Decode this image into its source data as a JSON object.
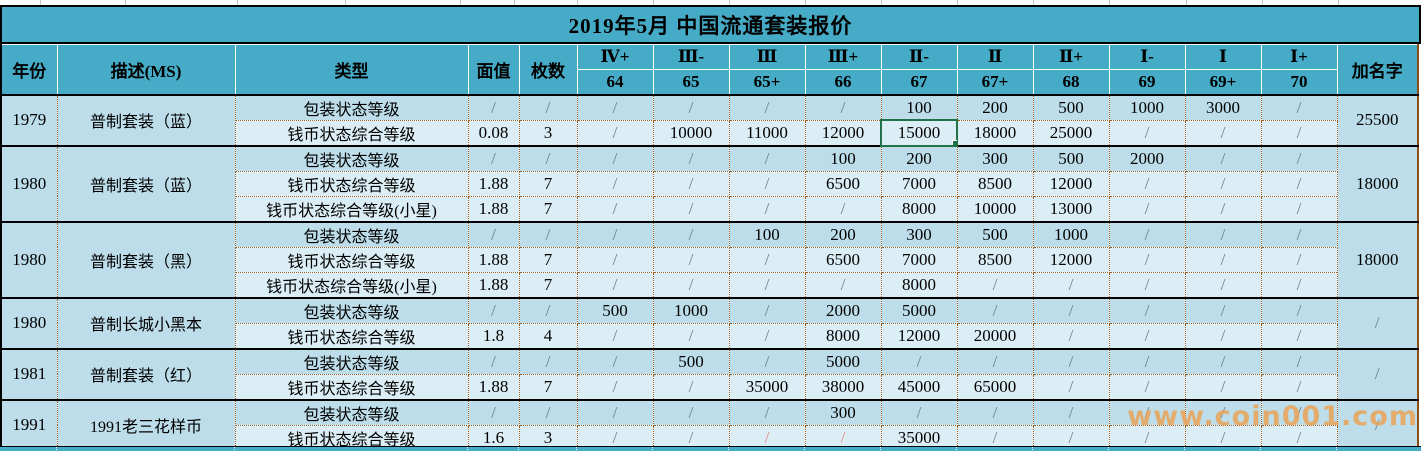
{
  "title": "2019年5月  中国流通套装报价",
  "watermark": "www.coin001.com",
  "colors": {
    "header_teal": "#46abc6",
    "group_band": "#bcdde9",
    "data_band": "#dceef5",
    "selection_green": "#1f7346",
    "dotted_border_brown": "#9b5d1e",
    "slash_gray": "#708090",
    "slash_red": "#e98b8b",
    "watermark_orange": "#ee9e4a"
  },
  "header": {
    "year": "年份",
    "desc": "描述(MS)",
    "type": "类型",
    "face_value": "面值",
    "count": "枚数",
    "add_name": "加名字",
    "grades": [
      {
        "label": "Ⅳ+",
        "num": "64"
      },
      {
        "label": "Ⅲ-",
        "num": "65"
      },
      {
        "label": "Ⅲ",
        "num": "65+"
      },
      {
        "label": "Ⅲ+",
        "num": "66"
      },
      {
        "label": "Ⅱ-",
        "num": "67"
      },
      {
        "label": "Ⅱ",
        "num": "67+"
      },
      {
        "label": "Ⅱ+",
        "num": "68"
      },
      {
        "label": "Ⅰ-",
        "num": "69"
      },
      {
        "label": "Ⅰ",
        "num": "69+"
      },
      {
        "label": "Ⅰ+",
        "num": "70"
      }
    ]
  },
  "groups": [
    {
      "year": "1979",
      "desc": "普制套装（蓝）",
      "add_name": "25500",
      "rows": [
        {
          "type": "包装状态等级",
          "face": "/",
          "count": "/",
          "values": [
            "/",
            "/",
            "/",
            "/",
            "100",
            "200",
            "500",
            "1000",
            "3000",
            "/"
          ]
        },
        {
          "type": "钱币状态综合等级",
          "face": "0.08",
          "count": "3",
          "values": [
            "/",
            "10000",
            "11000",
            "12000",
            "15000",
            "18000",
            "25000",
            "/",
            "/",
            "/"
          ],
          "selected_index": 4
        }
      ]
    },
    {
      "year": "1980",
      "desc": "普制套装（蓝）",
      "add_name": "18000",
      "rows": [
        {
          "type": "包装状态等级",
          "face": "/",
          "count": "/",
          "values": [
            "/",
            "/",
            "/",
            "100",
            "200",
            "300",
            "500",
            "2000",
            "/",
            "/"
          ]
        },
        {
          "type": "钱币状态综合等级",
          "face": "1.88",
          "count": "7",
          "values": [
            "/",
            "/",
            "/",
            "6500",
            "7000",
            "8500",
            "12000",
            "/",
            "/",
            "/"
          ]
        },
        {
          "type": "钱币状态综合等级(小星)",
          "face": "1.88",
          "count": "7",
          "values": [
            "/",
            "/",
            "/",
            "/",
            "8000",
            "10000",
            "13000",
            "/",
            "/",
            "/"
          ]
        }
      ]
    },
    {
      "year": "1980",
      "desc": "普制套装（黑）",
      "add_name": "18000",
      "rows": [
        {
          "type": "包装状态等级",
          "face": "/",
          "count": "/",
          "values": [
            "/",
            "/",
            "100",
            "200",
            "300",
            "500",
            "1000",
            "/",
            "/",
            "/"
          ]
        },
        {
          "type": "钱币状态综合等级",
          "face": "1.88",
          "count": "7",
          "values": [
            "/",
            "/",
            "/",
            "6500",
            "7000",
            "8500",
            "12000",
            "/",
            "/",
            "/"
          ]
        },
        {
          "type": "钱币状态综合等级(小星)",
          "face": "1.88",
          "count": "7",
          "values": [
            "/",
            "/",
            "/",
            "/",
            "8000",
            "/",
            "/",
            "/",
            "/",
            "/"
          ]
        }
      ]
    },
    {
      "year": "1980",
      "desc": "普制长城小黑本",
      "add_name": "/",
      "rows": [
        {
          "type": "包装状态等级",
          "face": "/",
          "count": "/",
          "values": [
            "500",
            "1000",
            "/",
            "2000",
            "5000",
            "/",
            "/",
            "/",
            "/",
            "/"
          ]
        },
        {
          "type": "钱币状态综合等级",
          "face": "1.8",
          "count": "4",
          "values": [
            "/",
            "/",
            "/",
            "8000",
            "12000",
            "20000",
            "/",
            "/",
            "/",
            "/"
          ]
        }
      ]
    },
    {
      "year": "1981",
      "desc": "普制套装（红）",
      "add_name": "/",
      "rows": [
        {
          "type": "包装状态等级",
          "face": "/",
          "count": "/",
          "values": [
            "/",
            "500",
            "/",
            "5000",
            "/",
            "/",
            "/",
            "/",
            "/",
            "/"
          ]
        },
        {
          "type": "钱币状态综合等级",
          "face": "1.88",
          "count": "7",
          "values": [
            "/",
            "/",
            "35000",
            "38000",
            "45000",
            "65000",
            "/",
            "/",
            "/",
            "/"
          ]
        }
      ]
    },
    {
      "year": "1991",
      "desc": "1991老三花样币",
      "add_name": "/",
      "rows": [
        {
          "type": "包装状态等级",
          "face": "/",
          "count": "/",
          "values": [
            "/",
            "/",
            "/",
            "300",
            "/",
            "/",
            "/",
            "/",
            "/",
            "/"
          ]
        },
        {
          "type": "钱币状态综合等级",
          "face": "1.6",
          "count": "3",
          "values": [
            "/",
            "/",
            "/",
            "/",
            "35000",
            "/",
            "/",
            "/",
            "/",
            "/"
          ],
          "red_indices": [
            2,
            3
          ]
        }
      ]
    }
  ]
}
